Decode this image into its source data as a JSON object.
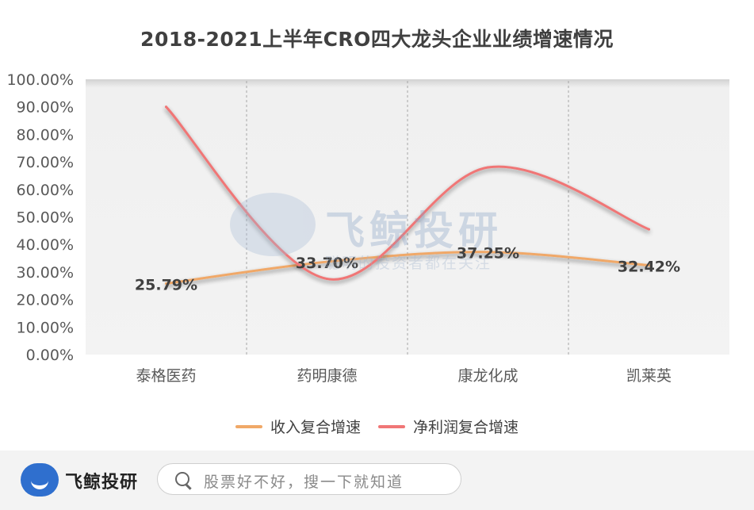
{
  "chart_data": {
    "type": "line",
    "title": "2018-2021上半年CRO四大龙头企业业绩增速情况",
    "categories": [
      "泰格医药",
      "药明康德",
      "康龙化成",
      "凯莱英"
    ],
    "series": [
      {
        "name": "收入复合增速",
        "color": "#f0a868",
        "values": [
          25.79,
          33.7,
          37.25,
          32.42
        ],
        "data_labels": [
          "25.79%",
          "33.70%",
          "37.25%",
          "32.42%"
        ]
      },
      {
        "name": "净利润复合增速",
        "color": "#f07676",
        "values": [
          90.0,
          27.5,
          68.0,
          45.5
        ]
      }
    ],
    "ylim": [
      0,
      100
    ],
    "y_ticks": [
      "0.00%",
      "10.00%",
      "20.00%",
      "30.00%",
      "40.00%",
      "50.00%",
      "60.00%",
      "70.00%",
      "80.00%",
      "90.00%",
      "100.00%"
    ],
    "grid": "vertical dashed",
    "legend_position": "bottom"
  },
  "watermark": {
    "brand": "飞鲸投研",
    "tagline": "聪明的投资者都在关注"
  },
  "footer": {
    "brand": "飞鲸投研",
    "search_placeholder": "股票好不好，搜一下就知道"
  }
}
